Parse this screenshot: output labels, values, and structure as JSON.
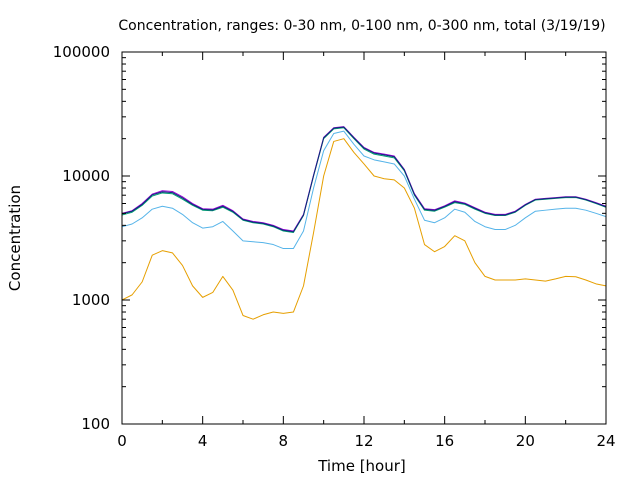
{
  "chart_data": {
    "type": "line",
    "title": "Concentration, ranges: 0-30 nm, 0-100 nm, 0-300 nm, total (3/19/19)",
    "xlabel": "Time [hour]",
    "ylabel": "Concentration",
    "xlim": [
      0,
      24
    ],
    "ylim": [
      100,
      100000
    ],
    "yscale": "log",
    "grid": false,
    "xticks": [
      0,
      4,
      8,
      12,
      16,
      20,
      24
    ],
    "xtick_labels": [
      "0",
      "4",
      "8",
      "12",
      "16",
      "20",
      "24"
    ],
    "yticks": [
      100,
      1000,
      10000,
      100000
    ],
    "ytick_labels": [
      "100",
      "1000",
      "10000",
      "100000"
    ],
    "series": [
      {
        "color": "#e69f00",
        "x": [
          0,
          0.5,
          1,
          1.5,
          2,
          2.5,
          3,
          3.5,
          4,
          4.5,
          5,
          5.5,
          6,
          6.5,
          7,
          7.5,
          8,
          8.5,
          9,
          9.5,
          10,
          10.5,
          11,
          11.5,
          12,
          12.5,
          13,
          13.5,
          14,
          14.5,
          15,
          15.5,
          16,
          16.5,
          17,
          17.5,
          18,
          18.5,
          19,
          19.5,
          20,
          20.5,
          21,
          21.5,
          22,
          22.5,
          23,
          23.5,
          24
        ],
        "y": [
          1000,
          1100,
          1400,
          2300,
          2500,
          2400,
          1900,
          1300,
          1050,
          1150,
          1550,
          1200,
          750,
          700,
          760,
          800,
          780,
          800,
          1300,
          3500,
          10000,
          19000,
          20000,
          15500,
          12500,
          10000,
          9500,
          9300,
          8000,
          5500,
          2800,
          2450,
          2700,
          3300,
          3000,
          2000,
          1550,
          1450,
          1450,
          1450,
          1480,
          1450,
          1420,
          1480,
          1550,
          1540,
          1450,
          1350,
          1300
        ]
      },
      {
        "color": "#56b4e9",
        "x": [
          0,
          0.5,
          1,
          1.5,
          2,
          2.5,
          3,
          3.5,
          4,
          4.5,
          5,
          5.5,
          6,
          6.5,
          7,
          7.5,
          8,
          8.5,
          9,
          9.5,
          10,
          10.5,
          11,
          11.5,
          12,
          12.5,
          13,
          13.5,
          14,
          14.5,
          15,
          15.5,
          16,
          16.5,
          17,
          17.5,
          18,
          18.5,
          19,
          19.5,
          20,
          20.5,
          21,
          21.5,
          22,
          22.5,
          23,
          23.5,
          24
        ],
        "y": [
          3900,
          4100,
          4600,
          5400,
          5700,
          5500,
          4900,
          4200,
          3800,
          3900,
          4300,
          3600,
          3000,
          2950,
          2900,
          2800,
          2600,
          2600,
          3600,
          8000,
          16000,
          22000,
          23000,
          18000,
          14500,
          13500,
          13000,
          12500,
          10000,
          6500,
          4400,
          4200,
          4600,
          5400,
          5100,
          4300,
          3900,
          3700,
          3700,
          4000,
          4600,
          5200,
          5300,
          5400,
          5500,
          5500,
          5300,
          5000,
          4700
        ]
      },
      {
        "color": "#009e73",
        "x": [
          0,
          0.5,
          1,
          1.5,
          2,
          2.5,
          3,
          3.5,
          4,
          4.5,
          5,
          5.5,
          6,
          6.5,
          7,
          7.5,
          8,
          8.5,
          9,
          9.5,
          10,
          10.5,
          11,
          11.5,
          12,
          12.5,
          13,
          13.5,
          14,
          14.5,
          15,
          15.5,
          16,
          16.5,
          17,
          17.5,
          18,
          18.5,
          19,
          19.5,
          20,
          20.5,
          21,
          21.5,
          22,
          22.5,
          23,
          23.5,
          24
        ],
        "y": [
          4850,
          5100,
          5800,
          6900,
          7300,
          7200,
          6500,
          5800,
          5300,
          5250,
          5600,
          5100,
          4400,
          4200,
          4100,
          3900,
          3600,
          3500,
          4800,
          10000,
          20000,
          24000,
          24500,
          20000,
          16500,
          15000,
          14500,
          14000,
          11000,
          7000,
          5300,
          5200,
          5600,
          6100,
          5900,
          5400,
          5000,
          4800,
          4800,
          5100,
          5800,
          6400,
          6500,
          6600,
          6700,
          6700,
          6400,
          6000,
          5600
        ]
      },
      {
        "color": "#9400d3",
        "x": [
          0,
          0.5,
          1,
          1.5,
          2,
          2.5,
          3,
          3.5,
          4,
          4.5,
          5,
          5.5,
          6,
          6.5,
          7,
          7.5,
          8,
          8.5,
          9,
          9.5,
          10,
          10.5,
          11,
          11.5,
          12,
          12.5,
          13,
          13.5,
          14,
          14.5,
          15,
          15.5,
          16,
          16.5,
          17,
          17.5,
          18,
          18.5,
          19,
          19.5,
          20,
          20.5,
          21,
          21.5,
          22,
          22.5,
          23,
          23.5,
          24
        ],
        "y": [
          5000,
          5250,
          6000,
          7150,
          7600,
          7500,
          6800,
          6000,
          5450,
          5400,
          5800,
          5250,
          4500,
          4300,
          4200,
          4000,
          3700,
          3600,
          4900,
          10200,
          20500,
          24500,
          25000,
          20500,
          17000,
          15500,
          15000,
          14500,
          11300,
          7200,
          5450,
          5350,
          5750,
          6300,
          6050,
          5550,
          5100,
          4900,
          4900,
          5200,
          5900,
          6500,
          6600,
          6700,
          6800,
          6800,
          6500,
          6100,
          5700
        ]
      },
      {
        "color": "#0c2a7a",
        "x": [
          0,
          0.5,
          1,
          1.5,
          2,
          2.5,
          3,
          3.5,
          4,
          4.5,
          5,
          5.5,
          6,
          6.5,
          7,
          7.5,
          8,
          8.5,
          9,
          9.5,
          10,
          10.5,
          11,
          11.5,
          12,
          12.5,
          13,
          13.5,
          14,
          14.5,
          15,
          15.5,
          16,
          16.5,
          17,
          17.5,
          18,
          18.5,
          19,
          19.5,
          20,
          20.5,
          21,
          21.5,
          22,
          22.5,
          23,
          23.5,
          24
        ],
        "y": [
          4950,
          5200,
          5900,
          7050,
          7450,
          7350,
          6650,
          5900,
          5380,
          5320,
          5700,
          5180,
          4450,
          4250,
          4150,
          3950,
          3650,
          3550,
          4850,
          10100,
          20300,
          24300,
          24800,
          20300,
          16800,
          15300,
          14800,
          14300,
          11200,
          7100,
          5380,
          5280,
          5680,
          6200,
          5980,
          5480,
          5050,
          4850,
          4850,
          5150,
          5850,
          6450,
          6550,
          6650,
          6750,
          6750,
          6450,
          6050,
          5650
        ]
      }
    ]
  }
}
